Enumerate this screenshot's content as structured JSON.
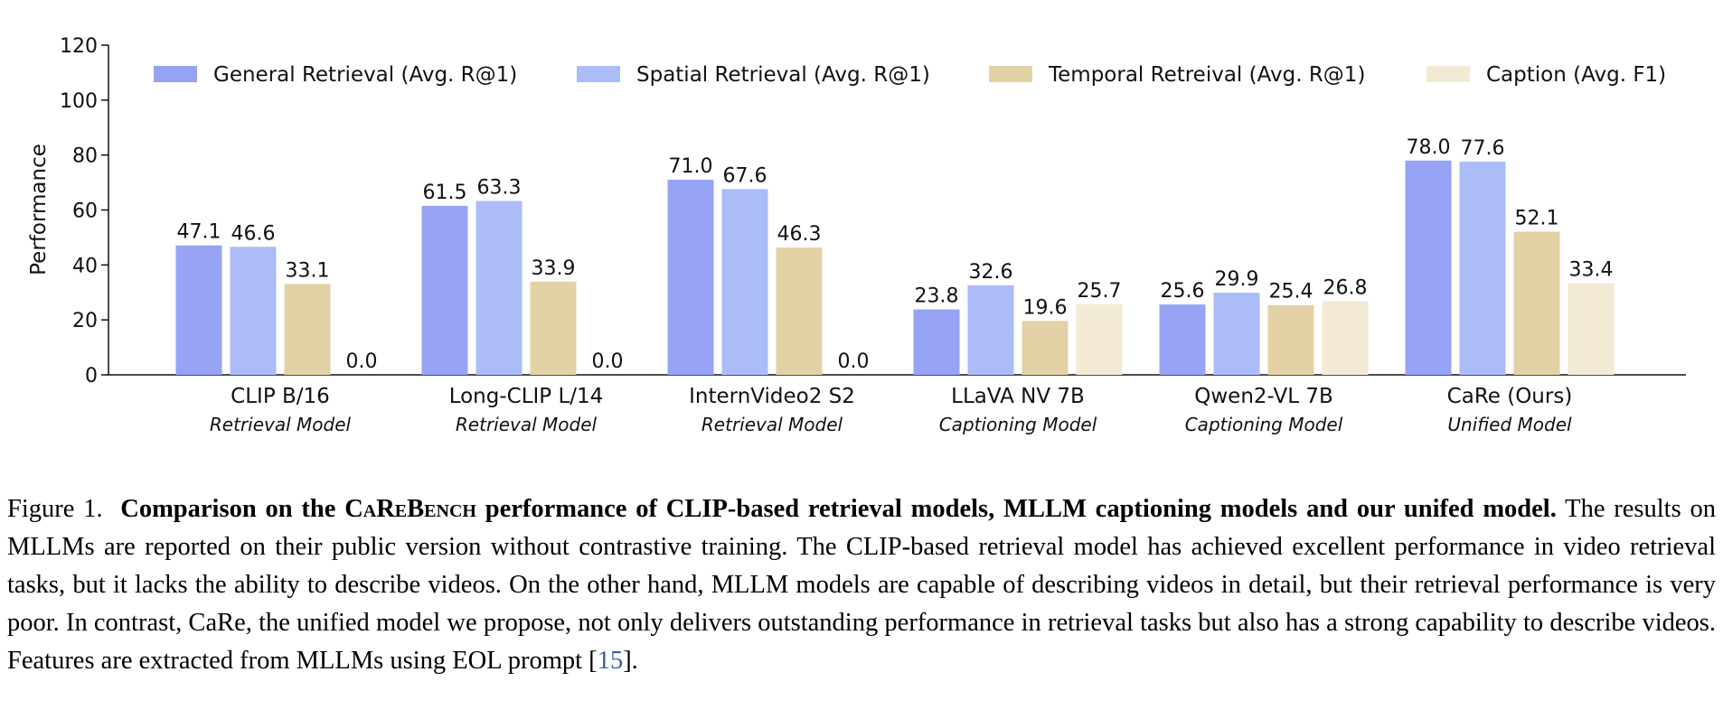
{
  "chart_data": {
    "type": "bar",
    "ylabel": "Performance",
    "xlabel": "",
    "ylim": [
      0,
      120
    ],
    "yticks": [
      0,
      20,
      40,
      60,
      80,
      100,
      120
    ],
    "grid": false,
    "legend_position": "top",
    "categories": [
      "CLIP B/16",
      "Long-CLIP L/14",
      "InternVideo2 S2",
      "LLaVA NV 7B",
      "Qwen2-VL 7B",
      "CaRe (Ours)"
    ],
    "category_subtitles": [
      "Retrieval Model",
      "Retrieval Model",
      "Retrieval Model",
      "Captioning Model",
      "Captioning Model",
      "Unified Model"
    ],
    "series": [
      {
        "name": "General Retrieval (Avg. R@1)",
        "color": "#97a3f5",
        "values": [
          47.1,
          61.5,
          71.0,
          23.8,
          25.6,
          78.0
        ]
      },
      {
        "name": "Spatial Retrieval (Avg. R@1)",
        "color": "#abbcf8",
        "values": [
          46.6,
          63.3,
          67.6,
          32.6,
          29.9,
          77.6
        ]
      },
      {
        "name": "Temporal Retreival (Avg. R@1)",
        "color": "#e3d1a6",
        "values": [
          33.1,
          33.9,
          46.3,
          19.6,
          25.4,
          52.1
        ]
      },
      {
        "name": "Caption (Avg. F1)",
        "color": "#f3ead6",
        "values": [
          0.0,
          0.0,
          0.0,
          25.7,
          26.8,
          33.4
        ]
      }
    ]
  },
  "caption": {
    "figure_label": "Figure 1.",
    "title_part1": "Comparison on the",
    "title_benchmark": "CaReBench",
    "title_part2": "performance of CLIP-based retrieval models, MLLM captioning models and our unifed model.",
    "body": "The results on MLLMs are reported on their public version without contrastive training. The CLIP-based retrieval model has achieved excellent performance in video retrieval tasks, but it lacks the ability to describe videos. On the other hand, MLLM models are capable of describing videos in detail, but their retrieval performance is very poor. In contrast, CaRe, the unified model we propose, not only delivers outstanding performance in retrieval tasks but also has a strong capability to describe videos. Features are extracted from MLLMs using EOL prompt [",
    "ref": "15",
    "end": "]."
  }
}
